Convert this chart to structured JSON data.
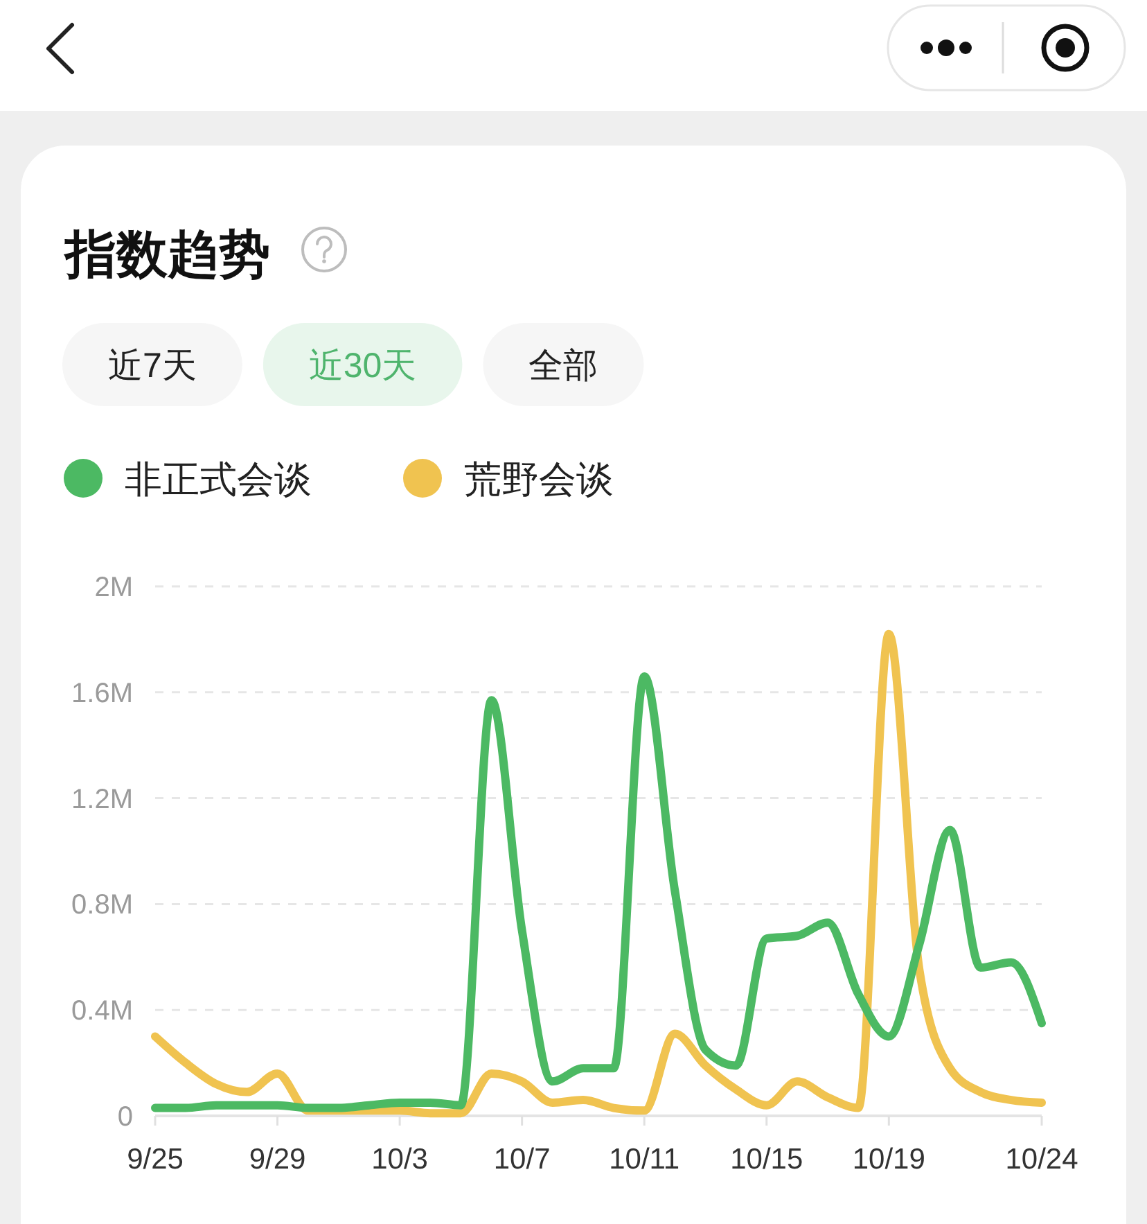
{
  "chart_data": {
    "type": "line",
    "title": "指数趋势",
    "annotations": [
      "近7天",
      "近30天",
      "全部"
    ],
    "categories": [
      "9/25",
      null,
      null,
      null,
      "9/29",
      null,
      null,
      null,
      "10/3",
      null,
      null,
      null,
      "10/7",
      null,
      null,
      null,
      "10/11",
      null,
      null,
      null,
      "10/15",
      null,
      null,
      null,
      "10/19",
      null,
      null,
      null,
      null,
      "10/24"
    ],
    "series": [
      {
        "name": "非正式会谈",
        "color": "#4cb963",
        "values": [
          30000,
          30000,
          40000,
          40000,
          40000,
          30000,
          30000,
          40000,
          50000,
          50000,
          40000,
          1570000,
          700000,
          130000,
          180000,
          180000,
          1660000,
          850000,
          250000,
          190000,
          670000,
          680000,
          730000,
          460000,
          300000,
          650000,
          1080000,
          560000,
          580000,
          350000
        ]
      },
      {
        "name": "荒野会谈",
        "color": "#f0c350",
        "values": [
          300000,
          200000,
          120000,
          90000,
          160000,
          20000,
          20000,
          20000,
          20000,
          10000,
          10000,
          160000,
          130000,
          50000,
          60000,
          30000,
          20000,
          310000,
          190000,
          100000,
          40000,
          130000,
          70000,
          30000,
          1820000,
          550000,
          180000,
          90000,
          60000,
          50000
        ]
      }
    ],
    "ylim": [
      0,
      2000000
    ],
    "yticks": [
      0,
      {
        "value": 400000,
        "label": "0.4M"
      },
      {
        "value": 800000,
        "label": "0.8M"
      },
      {
        "value": 1200000,
        "label": "1.2M"
      },
      {
        "value": 1600000,
        "label": "1.6M"
      },
      {
        "value": 2000000,
        "label": "2M"
      }
    ],
    "grid": "y",
    "legend": "top left"
  }
}
